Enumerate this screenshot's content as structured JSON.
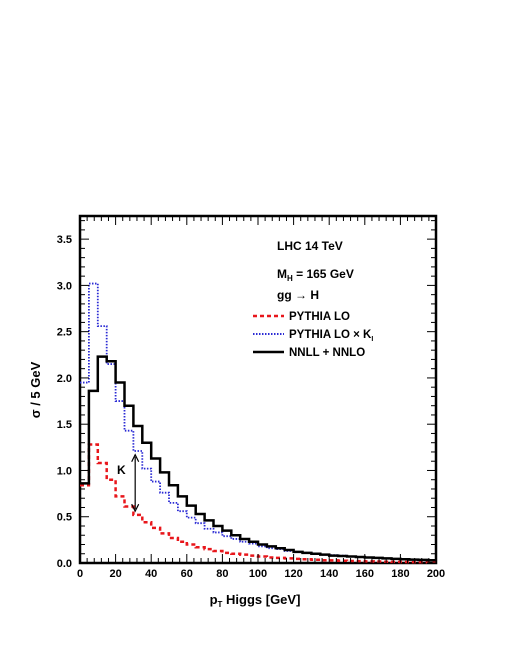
{
  "chart_data": {
    "type": "line",
    "xlabel_main": "p",
    "xlabel_sub": "T",
    "xlabel_rest": " Higgs [GeV]",
    "ylabel": "σ / 5 GeV",
    "xlim": [
      0,
      200
    ],
    "ylim": [
      0,
      3.75
    ],
    "x_ticks": [
      0,
      20,
      40,
      60,
      80,
      100,
      120,
      140,
      160,
      180,
      200
    ],
    "x_tick_labels": [
      "0",
      "20",
      "40",
      "60",
      "80",
      "100",
      "120",
      "140",
      "160",
      "180",
      "200"
    ],
    "y_ticks": [
      0,
      0.5,
      1.0,
      1.5,
      2.0,
      2.5,
      3.0,
      3.5
    ],
    "y_tick_labels": [
      "0.0",
      "0.5",
      "1.0",
      "1.5",
      "2.0",
      "2.5",
      "3.0",
      "3.5"
    ],
    "grid": false,
    "bin_edges": [
      0,
      5,
      10,
      15,
      20,
      25,
      30,
      35,
      40,
      45,
      50,
      55,
      60,
      65,
      70,
      75,
      80,
      85,
      90,
      95,
      100,
      105,
      110,
      115,
      120,
      125,
      130,
      135,
      140,
      145,
      150,
      155,
      160,
      165,
      170,
      175,
      180,
      185,
      190,
      195,
      200
    ],
    "annotations": {
      "header": "LHC 14 TeV",
      "mass_main": "M",
      "mass_sub": "H",
      "mass_rest": " = 165 GeV",
      "process": "gg → H",
      "k_label": "K",
      "k_arrow_x": 31,
      "k_arrow_y_from": 0.56,
      "k_arrow_y_to": 1.17
    },
    "legend_position": "right",
    "series": [
      {
        "name": "PYTHIA LO",
        "name_sub": "",
        "color": "#e8161b",
        "style": "dashed",
        "values": [
          0.84,
          1.28,
          1.08,
          0.9,
          0.72,
          0.61,
          0.52,
          0.44,
          0.38,
          0.32,
          0.27,
          0.23,
          0.2,
          0.17,
          0.15,
          0.13,
          0.11,
          0.1,
          0.09,
          0.08,
          0.07,
          0.06,
          0.055,
          0.05,
          0.045,
          0.04,
          0.035,
          0.03,
          0.028,
          0.025,
          0.022,
          0.02,
          0.018,
          0.016,
          0.014,
          0.012,
          0.011,
          0.01,
          0.009,
          0.008
        ]
      },
      {
        "name": "PYTHIA LO × K",
        "name_sub": "I",
        "color": "#2b2bd4",
        "style": "dotted",
        "values": [
          1.95,
          3.02,
          2.56,
          2.15,
          1.75,
          1.43,
          1.21,
          1.02,
          0.88,
          0.76,
          0.65,
          0.56,
          0.49,
          0.43,
          0.37,
          0.33,
          0.29,
          0.26,
          0.23,
          0.21,
          0.18,
          0.16,
          0.15,
          0.13,
          0.12,
          0.11,
          0.1,
          0.09,
          0.085,
          0.08,
          0.07,
          0.065,
          0.06,
          0.055,
          0.05,
          0.045,
          0.04,
          0.035,
          0.03,
          0.03
        ]
      },
      {
        "name": "NNLL + NNLO",
        "name_sub": "",
        "color": "#000000",
        "style": "solid",
        "values": [
          0.86,
          1.86,
          2.23,
          2.18,
          1.95,
          1.7,
          1.48,
          1.3,
          1.13,
          0.98,
          0.84,
          0.72,
          0.62,
          0.53,
          0.46,
          0.4,
          0.35,
          0.3,
          0.26,
          0.23,
          0.2,
          0.18,
          0.16,
          0.14,
          0.12,
          0.11,
          0.1,
          0.09,
          0.08,
          0.075,
          0.07,
          0.065,
          0.06,
          0.055,
          0.05,
          0.045,
          0.04,
          0.037,
          0.034,
          0.03
        ]
      }
    ]
  }
}
